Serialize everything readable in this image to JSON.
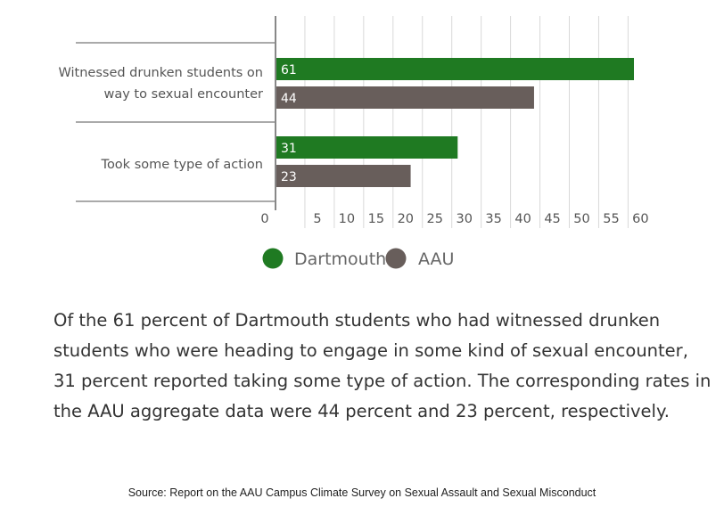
{
  "chart_data": {
    "type": "bar",
    "orientation": "horizontal",
    "categories": [
      "Witnessed drunken students on way to sexual encounter",
      "Took some type of action"
    ],
    "category_label_lines": [
      [
        "Witnessed drunken students on",
        "way to sexual encounter"
      ],
      [
        "Took some type of action"
      ]
    ],
    "series": [
      {
        "name": "Dartmouth",
        "color": "#1f7a22",
        "values": [
          61,
          31
        ]
      },
      {
        "name": "AAU",
        "color": "#685e5b",
        "values": [
          44,
          23
        ]
      }
    ],
    "x_ticks": [
      "0",
      "5",
      "10",
      "15",
      "20",
      "25",
      "30",
      "35",
      "40",
      "45",
      "50",
      "55",
      "60"
    ],
    "xlim": [
      0,
      61
    ],
    "grid": true,
    "legend_position": "bottom"
  },
  "caption": "Of the 61 percent of Dartmouth students who had witnessed drunken students who were heading to engage in some kind of sexual encounter, 31 percent reported taking some type of action. The corresponding rates in the AAU aggregate data were 44 percent and 23 percent, respectively.",
  "source": "Source: Report on the AAU Campus Climate Survey on Sexual Assault and Sexual Misconduct"
}
